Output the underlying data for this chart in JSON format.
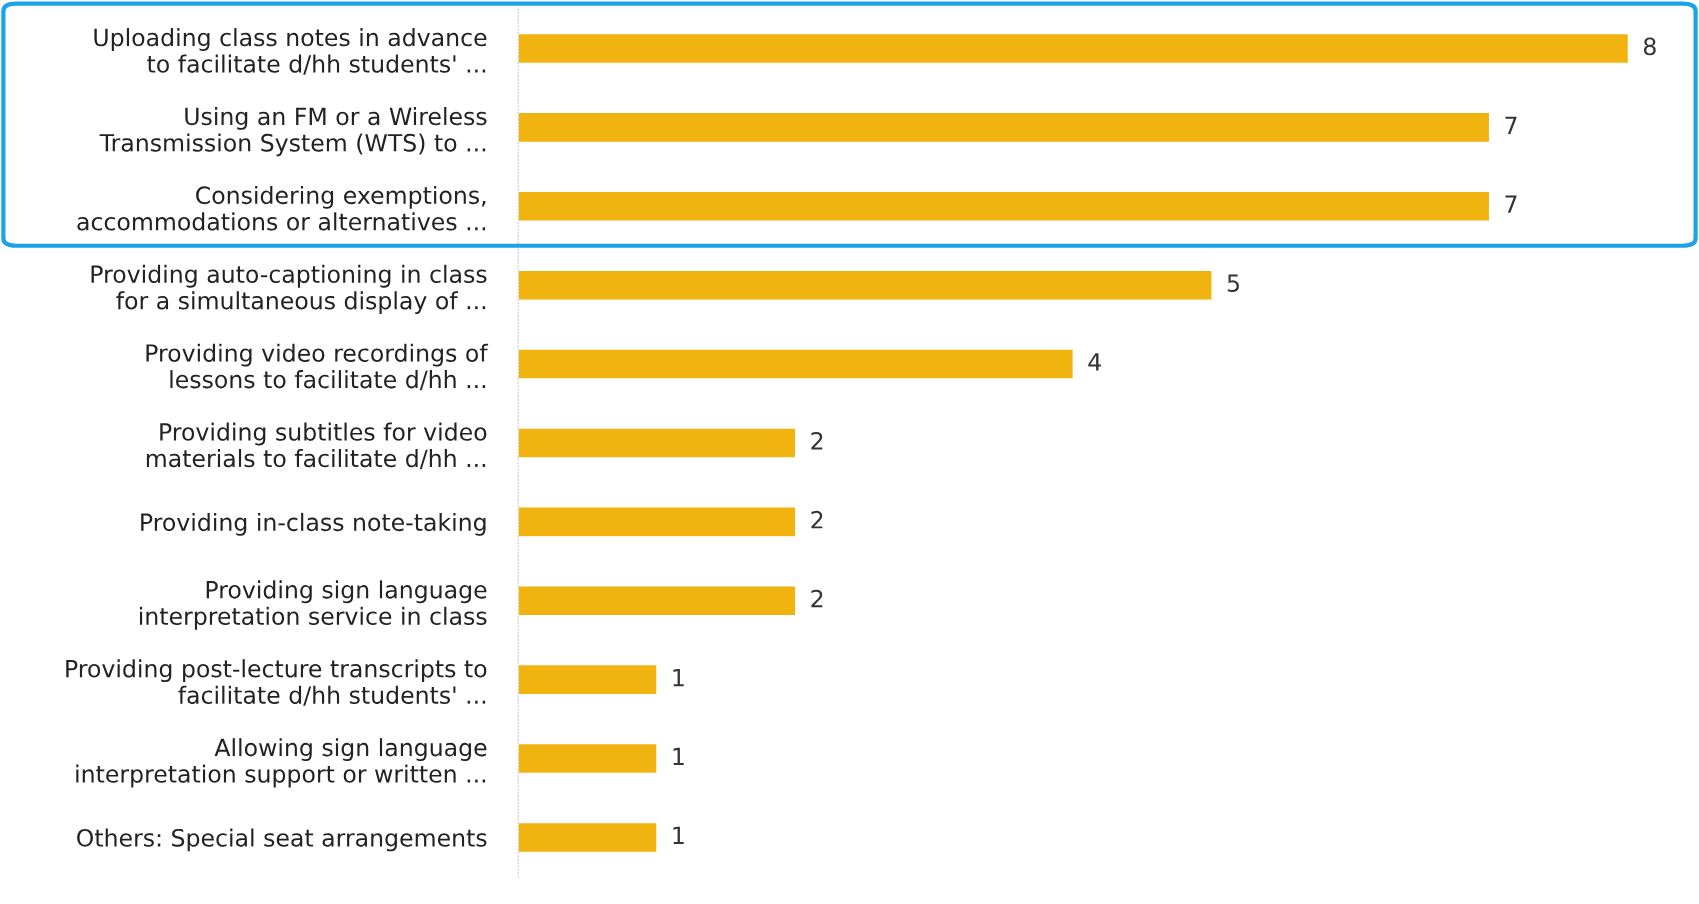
{
  "chart_data": {
    "type": "bar",
    "orientation": "horizontal",
    "categories": [
      "Uploading class notes in advance\nto facilitate d/hh students' ...",
      "Using an FM or a Wireless\nTransmission System (WTS) to ...",
      "Considering exemptions,\naccommodations or alternatives ...",
      "Providing auto-captioning in class\nfor a simultaneous display of ...",
      "Providing video recordings of\nlessons to facilitate d/hh ...",
      "Providing subtitles for video\nmaterials to facilitate d/hh ...",
      "Providing in-class note-taking",
      "Providing sign language\ninterpretation service in class",
      "Providing post-lecture transcripts to\nfacilitate d/hh students' ...",
      "Allowing sign language\ninterpretation support or written ...",
      "Others: Special seat arrangements"
    ],
    "values": [
      8,
      7,
      7,
      5,
      4,
      2,
      2,
      2,
      1,
      1,
      1
    ],
    "color": "#f0b310",
    "data_labels": true,
    "grid": false,
    "legend": false
  }
}
